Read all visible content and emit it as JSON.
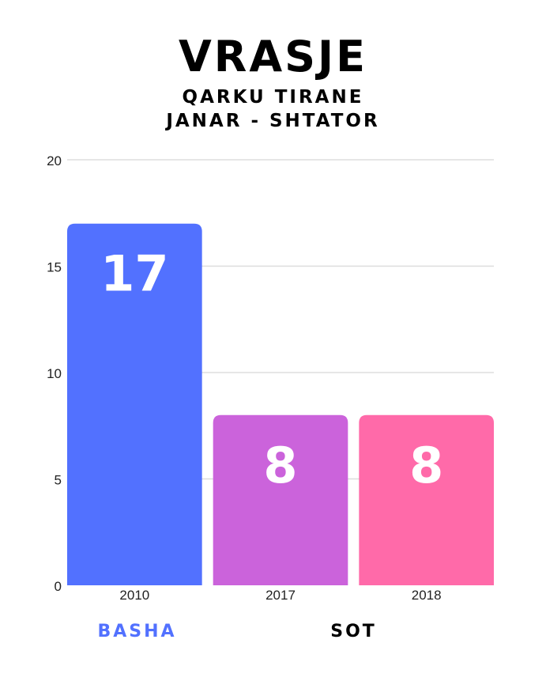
{
  "title": "VRASJE",
  "subtitle_line1": "QARKU TIRANE",
  "subtitle_line2": "JANAR - SHTATOR",
  "footer": {
    "left_label": "BASHA",
    "right_label": "SOT"
  },
  "colors": {
    "bar_2010": "#5271ff",
    "bar_2017": "#cb63db",
    "bar_2018": "#ff6aa9",
    "basha_label": "#5271ff",
    "sot_label": "#000000",
    "grid": "#dddddd"
  },
  "chart_data": {
    "type": "bar",
    "categories": [
      "2010",
      "2017",
      "2018"
    ],
    "values": [
      17,
      8,
      8
    ],
    "data_labels": [
      "17",
      "8",
      "8"
    ],
    "yticks": [
      "0",
      "5",
      "10",
      "15",
      "20"
    ],
    "ylim": [
      0,
      20
    ],
    "grid": true,
    "legend": "none"
  }
}
